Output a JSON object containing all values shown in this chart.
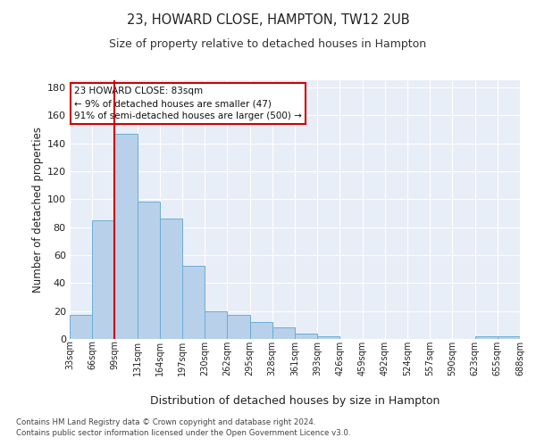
{
  "title": "23, HOWARD CLOSE, HAMPTON, TW12 2UB",
  "subtitle": "Size of property relative to detached houses in Hampton",
  "xlabel": "Distribution of detached houses by size in Hampton",
  "ylabel": "Number of detached properties",
  "bar_values": [
    17,
    85,
    147,
    98,
    86,
    52,
    20,
    17,
    12,
    8,
    4,
    2,
    0,
    0,
    0,
    0,
    0,
    0,
    2,
    2
  ],
  "bin_labels": [
    "33sqm",
    "66sqm",
    "99sqm",
    "131sqm",
    "164sqm",
    "197sqm",
    "230sqm",
    "262sqm",
    "295sqm",
    "328sqm",
    "361sqm",
    "393sqm",
    "426sqm",
    "459sqm",
    "492sqm",
    "524sqm",
    "557sqm",
    "590sqm",
    "623sqm",
    "655sqm",
    "688sqm"
  ],
  "bar_color": "#b8d0ea",
  "bar_edge_color": "#6aaed6",
  "fig_background_color": "#ffffff",
  "axes_background_color": "#e8eef7",
  "grid_color": "#ffffff",
  "vline_color": "#cc0000",
  "annotation_text": "23 HOWARD CLOSE: 83sqm\n← 9% of detached houses are smaller (47)\n91% of semi-detached houses are larger (500) →",
  "annotation_box_color": "#ffffff",
  "annotation_box_edge_color": "#cc0000",
  "ylim": [
    0,
    185
  ],
  "yticks": [
    0,
    20,
    40,
    60,
    80,
    100,
    120,
    140,
    160,
    180
  ],
  "footer_line1": "Contains HM Land Registry data © Crown copyright and database right 2024.",
  "footer_line2": "Contains public sector information licensed under the Open Government Licence v3.0."
}
